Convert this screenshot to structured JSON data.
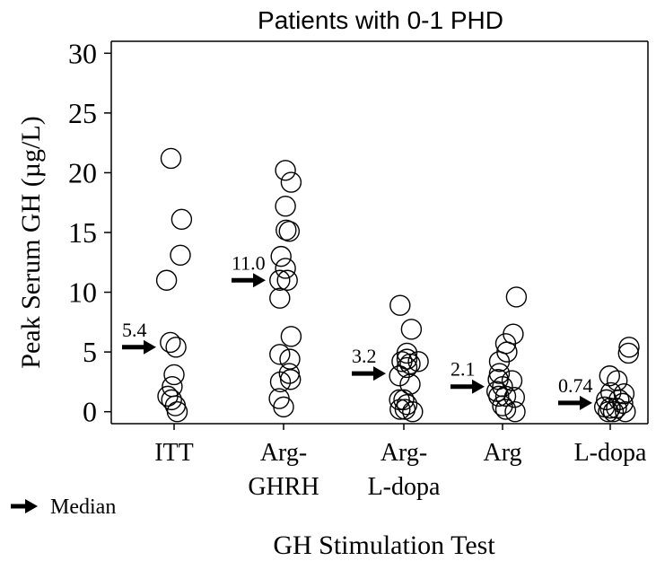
{
  "chart_data": {
    "type": "scatter",
    "title": "Patients with 0-1 PHD",
    "xlabel": "GH Stimulation Test",
    "ylabel": "Peak Serum GH (µg/L)",
    "ylim": [
      -1,
      31
    ],
    "yticks": [
      0,
      5,
      10,
      15,
      20,
      25,
      30
    ],
    "grid": false,
    "legend": {
      "label": "Median",
      "placement": "bottom-left"
    },
    "categories": [
      {
        "lines": [
          "ITT"
        ]
      },
      {
        "lines": [
          "Arg-",
          "GHRH"
        ]
      },
      {
        "lines": [
          "Arg-",
          "L-dopa"
        ]
      },
      {
        "lines": [
          "Arg"
        ]
      },
      {
        "lines": [
          "L-dopa"
        ]
      }
    ],
    "medians": [
      "5.4",
      "11.0",
      "3.2",
      "2.1",
      "0.74"
    ],
    "median_values": [
      5.4,
      11.0,
      3.2,
      2.1,
      0.74
    ],
    "points": [
      {
        "category": 0,
        "x": -0.05,
        "y": 21.2
      },
      {
        "category": 0,
        "x": 0.12,
        "y": 16.1
      },
      {
        "category": 0,
        "x": 0.1,
        "y": 13.1
      },
      {
        "category": 0,
        "x": -0.12,
        "y": 11.0
      },
      {
        "category": 0,
        "x": -0.06,
        "y": 5.8
      },
      {
        "category": 0,
        "x": 0.03,
        "y": 5.4
      },
      {
        "category": 0,
        "x": 0.0,
        "y": 3.1
      },
      {
        "category": 0,
        "x": -0.03,
        "y": 2.1
      },
      {
        "category": 0,
        "x": -0.1,
        "y": 1.3
      },
      {
        "category": 0,
        "x": -0.04,
        "y": 1.0
      },
      {
        "category": 0,
        "x": 0.02,
        "y": 0.5
      },
      {
        "category": 0,
        "x": 0.05,
        "y": 0.0
      },
      {
        "category": 1,
        "x": 0.03,
        "y": 20.2
      },
      {
        "category": 1,
        "x": 0.12,
        "y": 19.2
      },
      {
        "category": 1,
        "x": 0.03,
        "y": 17.2
      },
      {
        "category": 1,
        "x": 0.04,
        "y": 15.2
      },
      {
        "category": 1,
        "x": 0.09,
        "y": 15.1
      },
      {
        "category": 1,
        "x": -0.04,
        "y": 13.0
      },
      {
        "category": 1,
        "x": 0.03,
        "y": 12.0
      },
      {
        "category": 1,
        "x": 0.06,
        "y": 11.0
      },
      {
        "category": 1,
        "x": -0.06,
        "y": 11.0
      },
      {
        "category": 1,
        "x": -0.06,
        "y": 9.5
      },
      {
        "category": 1,
        "x": 0.12,
        "y": 6.3
      },
      {
        "category": 1,
        "x": -0.06,
        "y": 4.8
      },
      {
        "category": 1,
        "x": 0.1,
        "y": 4.4
      },
      {
        "category": 1,
        "x": 0.09,
        "y": 3.2
      },
      {
        "category": 1,
        "x": 0.11,
        "y": 2.7
      },
      {
        "category": 1,
        "x": -0.05,
        "y": 2.5
      },
      {
        "category": 1,
        "x": -0.07,
        "y": 1.1
      },
      {
        "category": 1,
        "x": 0.0,
        "y": 0.4
      },
      {
        "category": 2,
        "x": -0.06,
        "y": 8.9
      },
      {
        "category": 2,
        "x": 0.12,
        "y": 6.9
      },
      {
        "category": 2,
        "x": 0.05,
        "y": 4.9
      },
      {
        "category": 2,
        "x": 0.05,
        "y": 4.4
      },
      {
        "category": 2,
        "x": -0.03,
        "y": 4.2
      },
      {
        "category": 2,
        "x": 0.23,
        "y": 4.2
      },
      {
        "category": 2,
        "x": 0.1,
        "y": 4.0
      },
      {
        "category": 2,
        "x": 0.05,
        "y": 3.7
      },
      {
        "category": 2,
        "x": -0.07,
        "y": 3.0
      },
      {
        "category": 2,
        "x": 0.1,
        "y": 2.3
      },
      {
        "category": 2,
        "x": -0.07,
        "y": 1.0
      },
      {
        "category": 2,
        "x": 0.0,
        "y": 1.0
      },
      {
        "category": 2,
        "x": 0.05,
        "y": 0.6
      },
      {
        "category": 2,
        "x": -0.06,
        "y": 0.2
      },
      {
        "category": 2,
        "x": 0.02,
        "y": 0.2
      },
      {
        "category": 2,
        "x": 0.14,
        "y": 0.0
      },
      {
        "category": 3,
        "x": 0.22,
        "y": 9.6
      },
      {
        "category": 3,
        "x": 0.17,
        "y": 6.5
      },
      {
        "category": 3,
        "x": 0.05,
        "y": 5.7
      },
      {
        "category": 3,
        "x": 0.07,
        "y": 5.0
      },
      {
        "category": 3,
        "x": -0.05,
        "y": 4.2
      },
      {
        "category": 3,
        "x": -0.05,
        "y": 3.2
      },
      {
        "category": 3,
        "x": -0.07,
        "y": 2.7
      },
      {
        "category": 3,
        "x": 0.15,
        "y": 2.6
      },
      {
        "category": 3,
        "x": 0.0,
        "y": 2.1
      },
      {
        "category": 3,
        "x": -0.09,
        "y": 1.7
      },
      {
        "category": 3,
        "x": -0.06,
        "y": 1.3
      },
      {
        "category": 3,
        "x": 0.05,
        "y": 1.3
      },
      {
        "category": 3,
        "x": 0.19,
        "y": 1.2
      },
      {
        "category": 3,
        "x": 0.0,
        "y": 0.5
      },
      {
        "category": 3,
        "x": 0.05,
        "y": 0.2
      },
      {
        "category": 3,
        "x": 0.2,
        "y": 0.0
      },
      {
        "category": 4,
        "x": 0.3,
        "y": 5.4
      },
      {
        "category": 4,
        "x": 0.29,
        "y": 4.9
      },
      {
        "category": 4,
        "x": -0.01,
        "y": 3.0
      },
      {
        "category": 4,
        "x": 0.11,
        "y": 2.6
      },
      {
        "category": 4,
        "x": 0.01,
        "y": 1.6
      },
      {
        "category": 4,
        "x": 0.22,
        "y": 1.5
      },
      {
        "category": 4,
        "x": -0.06,
        "y": 1.0
      },
      {
        "category": 4,
        "x": 0.14,
        "y": 1.0
      },
      {
        "category": 4,
        "x": 0.2,
        "y": 0.7
      },
      {
        "category": 4,
        "x": -0.09,
        "y": 0.4
      },
      {
        "category": 4,
        "x": 0.0,
        "y": 0.3
      },
      {
        "category": 4,
        "x": 0.1,
        "y": 0.3
      },
      {
        "category": 4,
        "x": -0.03,
        "y": 0.0
      },
      {
        "category": 4,
        "x": 0.05,
        "y": 0.0
      },
      {
        "category": 4,
        "x": 0.24,
        "y": 0.0
      }
    ]
  }
}
